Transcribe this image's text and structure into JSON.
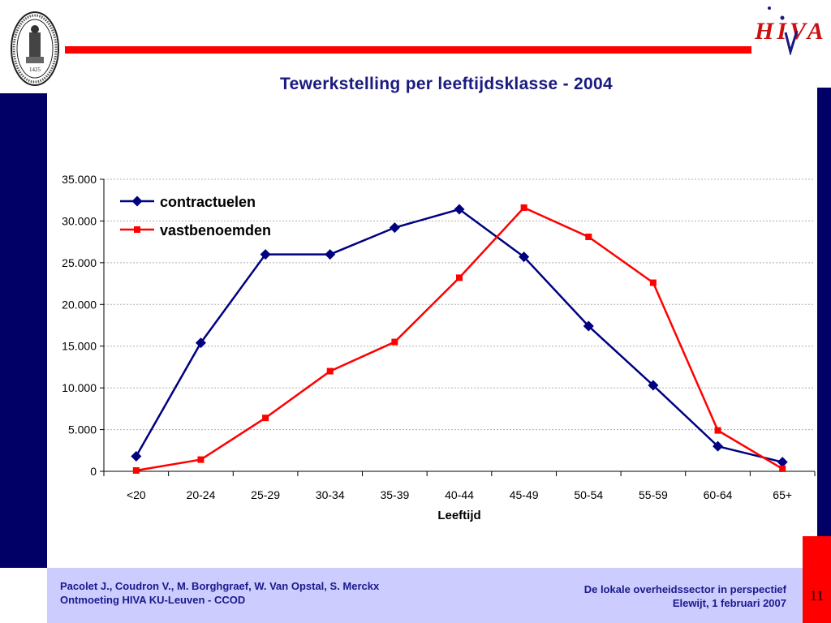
{
  "slide": {
    "title": "Tewerkstelling per leeftijdsklasse - 2004",
    "page_number": "11",
    "seal_text": "1425"
  },
  "logo": {
    "text": "HIVA"
  },
  "footer": {
    "left_line1": "Pacolet J., Coudron V., M. Borghgraef, W. Van Opstal, S. Merckx",
    "left_line2": "Ontmoeting HIVA KU-Leuven - CCOD",
    "right_line1": "De lokale overheidssector in perspectief",
    "right_line2": "Elewijt, 1 februari 2007"
  },
  "colors": {
    "navy": "#000066",
    "red": "#ff0000",
    "footer_bg": "#ccccff",
    "series_contractuelen": "#000080",
    "series_vastbenoemden": "#ff0000"
  },
  "chart_data": {
    "type": "line",
    "title": "Tewerkstelling per leeftijdsklasse - 2004",
    "xlabel": "Leeftijd",
    "ylabel": "",
    "categories": [
      "<20",
      "20-24",
      "25-29",
      "30-34",
      "35-39",
      "40-44",
      "45-49",
      "50-54",
      "55-59",
      "60-64",
      "65+"
    ],
    "ylim": [
      0,
      35000
    ],
    "yticks": [
      0,
      5000,
      10000,
      15000,
      20000,
      25000,
      30000,
      35000
    ],
    "ytick_labels": [
      "0",
      "5.000",
      "10.000",
      "15.000",
      "20.000",
      "25.000",
      "30.000",
      "35.000"
    ],
    "grid": true,
    "legend_position": "top-left",
    "series": [
      {
        "name": "contractuelen",
        "color": "#000080",
        "marker": "diamond",
        "values": [
          1800,
          15400,
          26000,
          26000,
          29200,
          31400,
          25700,
          17400,
          10300,
          3000,
          1100
        ]
      },
      {
        "name": "vastbenoemden",
        "color": "#ff0000",
        "marker": "square",
        "values": [
          100,
          1400,
          6400,
          12000,
          15500,
          23200,
          31600,
          28100,
          22600,
          4900,
          300
        ]
      }
    ]
  }
}
